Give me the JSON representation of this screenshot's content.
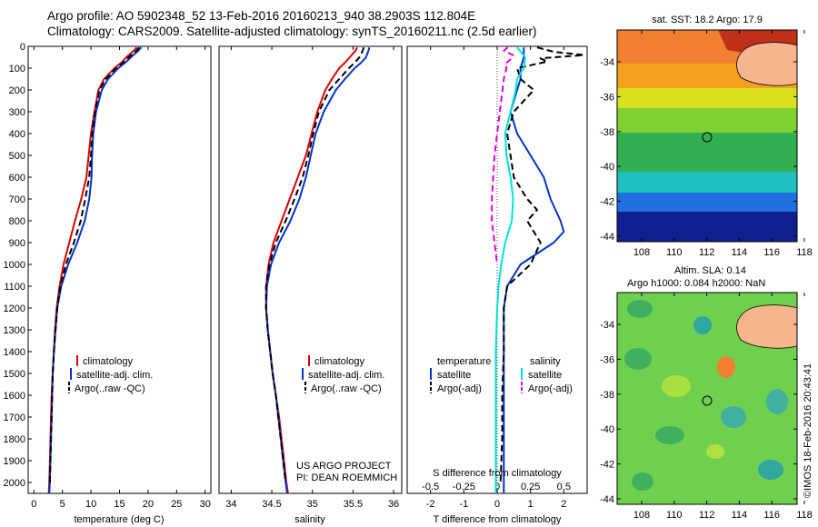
{
  "header": {
    "line1": "Argo profile: AO 5902348_52 13-Feb-2016 20160213_940 38.2903S 112.804E",
    "line2": "Climatology: CARS2009. Satellite-adjusted climatology: synTS_20160211.nc (2.5d earlier)"
  },
  "colors": {
    "climatology": "#e00000",
    "satellite": "#0033cc",
    "argo": "#000000",
    "sat_salinity": "#00e0e0",
    "argo_salinity": "#e000e0",
    "land": "#f7b58e"
  },
  "chart_data": [
    {
      "type": "line",
      "name": "temperature-panel",
      "xlabel": "temperature (deg C)",
      "ylabel": "",
      "xlim": [
        -1,
        31
      ],
      "ylim": [
        2050,
        0
      ],
      "xticks": [
        0,
        5,
        10,
        15,
        20,
        25,
        30
      ],
      "yticks": [
        0,
        100,
        200,
        300,
        400,
        500,
        600,
        700,
        800,
        900,
        1000,
        1100,
        1200,
        1300,
        1400,
        1500,
        1600,
        1700,
        1800,
        1900,
        2000
      ],
      "legend": [
        "climatology",
        "satellite-adj. clim.",
        "Argo(..raw -QC)"
      ],
      "legend_position": "lower-left",
      "series": [
        {
          "name": "climatology",
          "style": "solid",
          "color": "#e00000",
          "y": [
            5,
            20,
            50,
            75,
            100,
            150,
            200,
            300,
            400,
            500,
            600,
            700,
            800,
            900,
            1000,
            1100,
            1200,
            1300,
            1400,
            1500,
            1600,
            1700,
            1800,
            1900,
            2000,
            2050
          ],
          "x": [
            18.0,
            17.5,
            16.2,
            15.3,
            14.1,
            12.3,
            11.3,
            10.6,
            10.0,
            9.6,
            9.2,
            8.3,
            7.2,
            6.2,
            5.2,
            4.5,
            4.0,
            3.7,
            3.5,
            3.3,
            3.1,
            3.0,
            2.9,
            2.8,
            2.7,
            2.6
          ]
        },
        {
          "name": "satellite-adj. clim.",
          "style": "solid",
          "color": "#0033cc",
          "y": [
            5,
            20,
            50,
            75,
            100,
            150,
            200,
            300,
            400,
            500,
            600,
            700,
            800,
            900,
            1000,
            1100,
            1200,
            1300,
            1400,
            1500,
            1600,
            1700,
            1800,
            1900,
            2000,
            2050
          ],
          "x": [
            18.8,
            18.3,
            17.0,
            16.0,
            14.8,
            13.0,
            11.9,
            10.9,
            10.4,
            10.2,
            10.1,
            9.7,
            8.9,
            7.6,
            6.0,
            4.8,
            4.1,
            3.8,
            3.5,
            3.3,
            3.2,
            3.1,
            3.0,
            2.9,
            2.8,
            2.7
          ]
        },
        {
          "name": "Argo(..raw -QC)",
          "style": "dashed",
          "color": "#000000",
          "y": [
            5,
            20,
            50,
            75,
            100,
            150,
            200,
            300,
            400,
            500,
            600,
            700,
            800,
            900,
            1000,
            1100,
            1200,
            1300,
            1400,
            1500,
            1600,
            1700,
            1800,
            1900,
            2000
          ],
          "x": [
            18.4,
            18.0,
            16.6,
            15.6,
            14.4,
            12.6,
            11.5,
            10.7,
            10.2,
            10.0,
            9.7,
            9.0,
            8.2,
            7.0,
            5.6,
            4.6,
            4.1,
            3.8,
            3.5,
            3.3,
            3.2,
            3.1,
            3.0,
            2.9,
            2.8
          ]
        }
      ]
    },
    {
      "type": "line",
      "name": "salinity-panel",
      "xlabel": "salinity",
      "ylabel": "",
      "xlim": [
        33.85,
        36.1
      ],
      "ylim": [
        2050,
        0
      ],
      "xticks": [
        34,
        34.5,
        35,
        35.5,
        36
      ],
      "legend": [
        "climatology",
        "satellite-adj. clim.",
        "Argo(..raw -QC)"
      ],
      "legend_position": "lower-right",
      "annotation": [
        "US ARGO PROJECT",
        "PI: DEAN ROEMMICH"
      ],
      "series": [
        {
          "name": "climatology",
          "style": "solid",
          "color": "#e00000",
          "y": [
            5,
            20,
            50,
            75,
            100,
            150,
            200,
            300,
            400,
            500,
            600,
            700,
            800,
            900,
            1000,
            1100,
            1200,
            1300,
            1400,
            1500,
            1600,
            1700,
            1800,
            1900,
            2000,
            2050
          ],
          "x": [
            35.55,
            35.53,
            35.46,
            35.4,
            35.33,
            35.24,
            35.16,
            35.06,
            34.99,
            34.92,
            34.82,
            34.72,
            34.62,
            34.52,
            34.46,
            34.43,
            34.43,
            34.45,
            34.48,
            34.51,
            34.55,
            34.59,
            34.62,
            34.65,
            34.68,
            34.7
          ]
        },
        {
          "name": "satellite-adj. clim.",
          "style": "solid",
          "color": "#0033cc",
          "y": [
            5,
            20,
            50,
            75,
            100,
            150,
            200,
            300,
            400,
            500,
            600,
            700,
            800,
            900,
            1000,
            1100,
            1200,
            1300,
            1400,
            1500,
            1600,
            1700,
            1800,
            1900,
            2000,
            2050
          ],
          "x": [
            35.7,
            35.69,
            35.66,
            35.6,
            35.52,
            35.4,
            35.29,
            35.14,
            35.04,
            34.98,
            34.92,
            34.84,
            34.73,
            34.59,
            34.49,
            34.44,
            34.43,
            34.45,
            34.48,
            34.51,
            34.55,
            34.58,
            34.61,
            34.64,
            34.67,
            34.69
          ]
        },
        {
          "name": "Argo(..raw -QC)",
          "style": "dashed",
          "color": "#000000",
          "y": [
            5,
            20,
            50,
            75,
            100,
            150,
            200,
            300,
            400,
            500,
            600,
            700,
            800,
            900,
            1000,
            1100,
            1200,
            1300,
            1400,
            1500,
            1600,
            1700,
            1800,
            1900,
            2000
          ],
          "x": [
            35.63,
            35.62,
            35.58,
            35.52,
            35.45,
            35.33,
            35.21,
            35.08,
            35.01,
            34.95,
            34.88,
            34.78,
            34.67,
            34.55,
            34.47,
            34.43,
            34.43,
            34.45,
            34.48,
            34.51,
            34.55,
            34.58,
            34.61,
            34.64,
            34.67
          ]
        }
      ]
    },
    {
      "type": "line",
      "name": "difference-panel",
      "xlabel": "T difference from climatology",
      "x2label": "S difference from climatology",
      "xlim": [
        -2.7,
        2.7
      ],
      "ylim": [
        2050,
        0
      ],
      "xticks": [
        -2,
        -1,
        0,
        1,
        2
      ],
      "x2ticks": [
        "-0.5",
        "-0.25",
        "0",
        "0.25",
        "0.5"
      ],
      "legend_titles": [
        "temperature",
        "salinity"
      ],
      "legend": [
        "satellite",
        "Argo(-adj)",
        "satellite",
        "Argo(-adj)"
      ],
      "series": [
        {
          "name": "satellite",
          "group": "temperature",
          "style": "solid",
          "color": "#0033cc",
          "y": [
            5,
            20,
            50,
            100,
            150,
            200,
            300,
            400,
            500,
            600,
            700,
            800,
            850,
            900,
            1000,
            1100,
            1200,
            1300,
            1500,
            1700,
            1900,
            2050
          ],
          "x": [
            0.8,
            0.8,
            0.8,
            0.7,
            0.7,
            0.6,
            0.4,
            0.6,
            1.0,
            1.4,
            1.6,
            1.9,
            2.0,
            1.7,
            0.7,
            0.3,
            0.2,
            0.2,
            0.2,
            0.2,
            0.2,
            0.2
          ]
        },
        {
          "name": "Argo(-adj)",
          "group": "temperature",
          "style": "dashed",
          "color": "#000000",
          "y": [
            5,
            25,
            40,
            55,
            70,
            100,
            150,
            200,
            300,
            400,
            500,
            600,
            700,
            750,
            800,
            900,
            1000,
            1100,
            1200,
            1400,
            1600,
            1800,
            2000
          ],
          "x": [
            1.2,
            1.7,
            2.6,
            1.3,
            1.5,
            0.6,
            0.7,
            1.1,
            0.5,
            0.3,
            0.4,
            0.5,
            0.9,
            1.2,
            0.9,
            1.3,
            1.0,
            0.3,
            0.2,
            0.2,
            0.15,
            0.15,
            0.1
          ]
        },
        {
          "name": "satellite",
          "group": "salinity",
          "style": "solid",
          "color": "#00e0e0",
          "y": [
            5,
            50,
            100,
            150,
            200,
            300,
            400,
            500,
            600,
            700,
            800,
            900,
            1000,
            1100,
            1200,
            1400,
            1600,
            1800,
            2000,
            2050
          ],
          "x": [
            0.15,
            0.21,
            0.2,
            0.15,
            0.14,
            0.1,
            0.06,
            0.07,
            0.1,
            0.12,
            0.11,
            0.06,
            0.03,
            0.01,
            0.0,
            -0.01,
            -0.01,
            -0.01,
            -0.01,
            -0.01
          ]
        },
        {
          "name": "Argo(-adj)",
          "group": "salinity",
          "style": "dashed",
          "color": "#e000e0",
          "y": [
            5,
            20,
            40,
            60,
            80,
            100,
            150,
            200,
            300,
            400,
            500,
            600,
            700,
            800,
            900,
            1000
          ],
          "x": [
            0.08,
            0.05,
            0.12,
            0.1,
            0.06,
            0.07,
            0.05,
            0.04,
            0.02,
            0.0,
            -0.02,
            -0.03,
            -0.04,
            -0.04,
            -0.02,
            0.0
          ]
        }
      ]
    }
  ],
  "maps": {
    "sst": {
      "title": "sat. SST: 18.2  Argo: 17.9",
      "lat_ticks": [
        "-34",
        "-36",
        "-38",
        "-40",
        "-42",
        "-44"
      ],
      "lon_ticks": [
        "108",
        "110",
        "112",
        "114",
        "116",
        "118"
      ]
    },
    "sla": {
      "title_line1": "Altim. SLA: 0.14",
      "title_line2": "Argo h1000: 0.084  h2000: NaN",
      "lat_ticks": [
        "-34",
        "-36",
        "-38",
        "-40",
        "-42",
        "-44"
      ],
      "lon_ticks": [
        "108",
        "110",
        "112",
        "114",
        "116",
        "118"
      ]
    }
  },
  "credit": "©IMOS 18-Feb-2016 20:43:41"
}
